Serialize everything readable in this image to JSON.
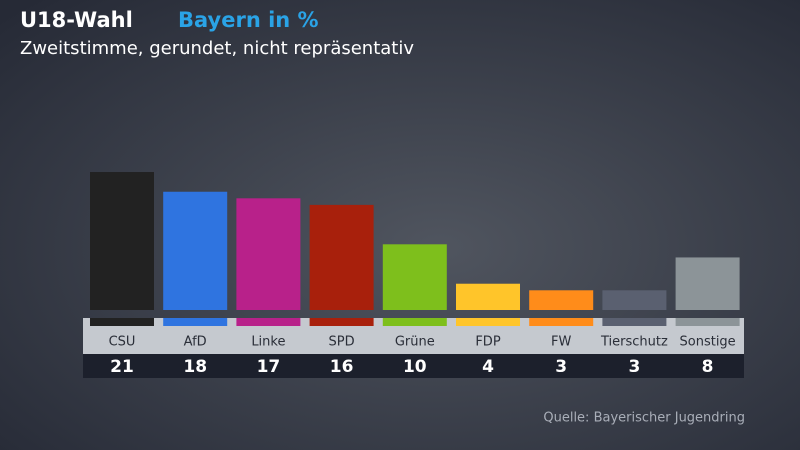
{
  "chart_data": {
    "type": "bar",
    "title": "U18-Wahl",
    "subtitle": "Bayern in %",
    "note": "Zweitstimme, gerundet, nicht repräsentativ",
    "source": "Quelle: Bayerischer Jugendring",
    "categories": [
      "CSU",
      "AfD",
      "Linke",
      "SPD",
      "Grüne",
      "FDP",
      "FW",
      "Tierschutz",
      "Sonstige"
    ],
    "values": [
      21,
      18,
      17,
      16,
      10,
      4,
      3,
      3,
      8
    ],
    "colors": [
      "#222222",
      "#2f74e0",
      "#b8218a",
      "#a8200c",
      "#7ebf1c",
      "#ffc52a",
      "#ff8c1a",
      "#5a6070",
      "#8c9498"
    ]
  }
}
